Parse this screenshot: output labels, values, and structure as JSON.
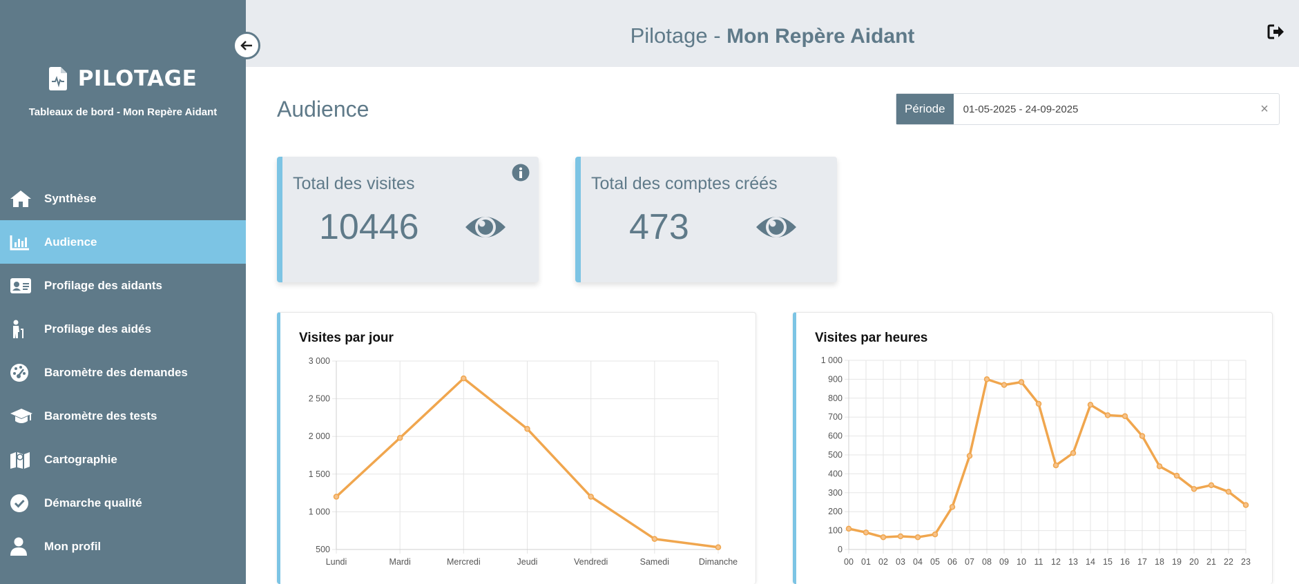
{
  "sidebar": {
    "brand_title": "PILOTAGE",
    "brand_subtitle": "Tableaux de bord - Mon Repère Aidant",
    "items": [
      {
        "label": "Synthèse",
        "icon": "home-icon"
      },
      {
        "label": "Audience",
        "icon": "bar-chart-icon",
        "active": true
      },
      {
        "label": "Profilage des aidants",
        "icon": "id-card-icon"
      },
      {
        "label": "Profilage des aidés",
        "icon": "person-cane-icon"
      },
      {
        "label": "Baromètre des demandes",
        "icon": "gauge-icon"
      },
      {
        "label": "Baromètre des tests",
        "icon": "graduation-cap-icon"
      },
      {
        "label": "Cartographie",
        "icon": "map-icon"
      },
      {
        "label": "Démarche qualité",
        "icon": "check-circle-icon"
      },
      {
        "label": "Mon profil",
        "icon": "user-icon"
      }
    ]
  },
  "header": {
    "title_light": "Pilotage - ",
    "title_bold": "Mon Repère Aidant"
  },
  "main": {
    "page_title": "Audience",
    "period": {
      "label": "Période",
      "value": "01-05-2025 - 24-09-2025",
      "clear": "×"
    },
    "kpis": [
      {
        "label": "Total des visites",
        "value": "10446"
      },
      {
        "label": "Total des comptes créés",
        "value": "473"
      }
    ]
  },
  "colors": {
    "sidebar": "#5f7a89",
    "active": "#7cc4e4",
    "line": "#f0a64e"
  },
  "chart_data": [
    {
      "type": "line",
      "title": "Visites par jour",
      "categories": [
        "Lundi",
        "Mardi",
        "Mercredi",
        "Jeudi",
        "Vendredi",
        "Samedi",
        "Dimanche"
      ],
      "values": [
        1200,
        1980,
        2770,
        2100,
        1200,
        640,
        530
      ],
      "ylim": [
        500,
        3000
      ],
      "yticks": [
        "3 000",
        "2 500",
        "2 000",
        "1 500",
        "1 000",
        "500"
      ],
      "grid": true
    },
    {
      "type": "line",
      "title": "Visites par heures",
      "categories": [
        "00",
        "01",
        "02",
        "03",
        "04",
        "05",
        "06",
        "07",
        "08",
        "09",
        "10",
        "11",
        "12",
        "13",
        "14",
        "15",
        "16",
        "17",
        "18",
        "19",
        "20",
        "21",
        "22",
        "23"
      ],
      "values": [
        110,
        90,
        65,
        70,
        65,
        80,
        225,
        495,
        900,
        870,
        885,
        770,
        445,
        510,
        765,
        710,
        705,
        600,
        440,
        390,
        320,
        340,
        305,
        235
      ],
      "ylim": [
        0,
        1000
      ],
      "yticks": [
        "1 000",
        "900",
        "800",
        "700",
        "600",
        "500",
        "400",
        "300",
        "200",
        "100",
        "0"
      ],
      "grid": true
    }
  ]
}
